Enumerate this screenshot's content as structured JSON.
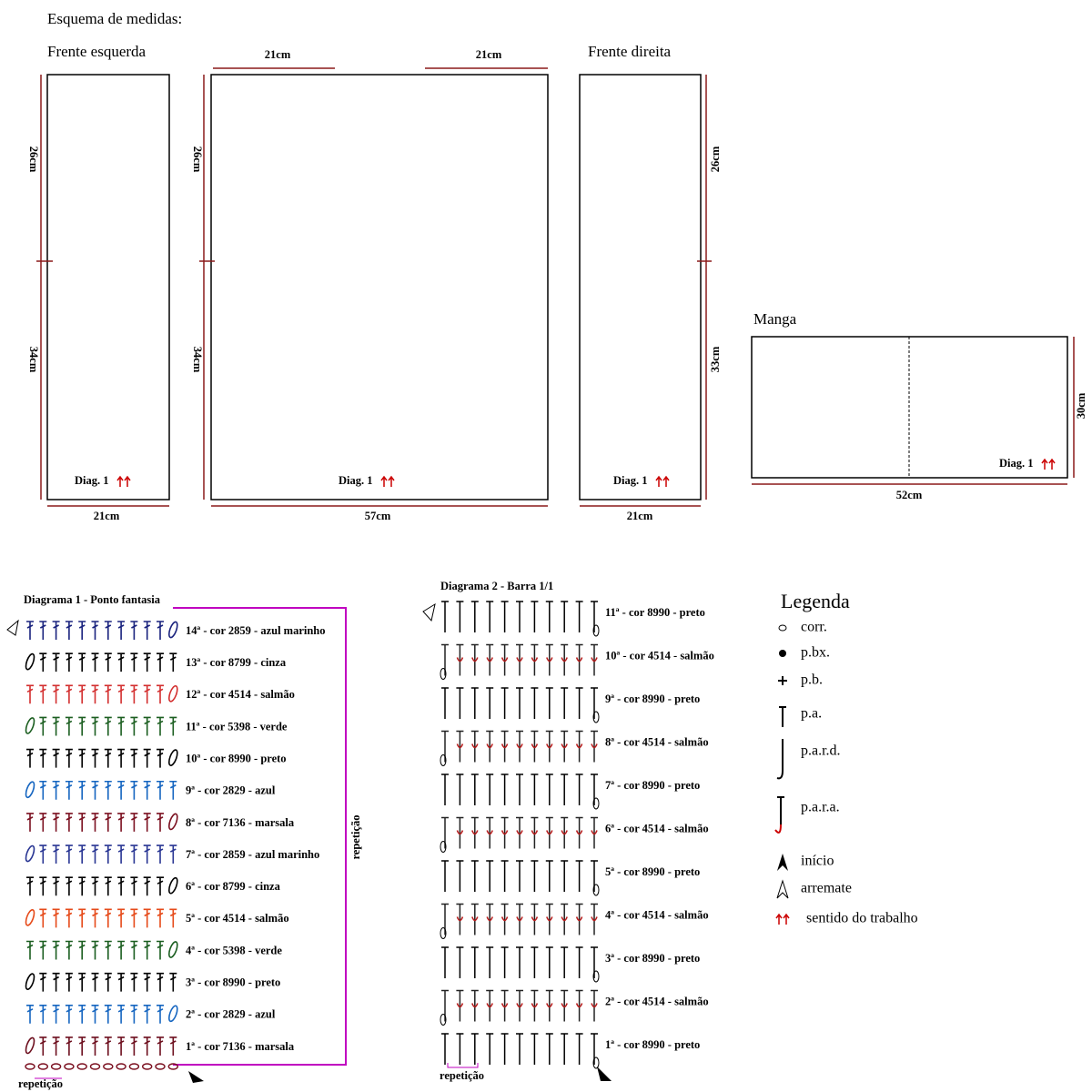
{
  "title": "Esquema de medidas:",
  "frente_esquerda": {
    "name": "Frente esquerda",
    "side": [
      "26cm",
      "34cm"
    ],
    "bottom": "21cm",
    "diag": "Diag. 1"
  },
  "costas": {
    "top": [
      "21cm",
      "21cm"
    ],
    "side": [
      "26cm",
      "34cm"
    ],
    "bottom": "57cm",
    "diag": "Diag. 1"
  },
  "frente_direita": {
    "name": "Frente direita",
    "side": [
      "26cm",
      "33cm"
    ],
    "bottom": "21cm",
    "diag": "Diag. 1"
  },
  "manga": {
    "name": "Manga",
    "side": "30cm",
    "bottom": "52cm",
    "diag": "Diag. 1"
  },
  "diagrama1": {
    "title": "Diagrama 1 - Ponto fantasia",
    "repeat_side": "repetição",
    "repeat_bottom": "repetição",
    "rows": [
      {
        "label": "14ª - cor 2859 - azul marinho",
        "color": "#1a237e"
      },
      {
        "label": "13ª - cor 8799 - cinza",
        "color": "#000000"
      },
      {
        "label": "12ª - cor 4514 - salmão",
        "color": "#d32f2f"
      },
      {
        "label": "11ª - cor 5398 - verde",
        "color": "#1b5e20"
      },
      {
        "label": "10ª - cor 8990 - preto",
        "color": "#000000"
      },
      {
        "label": "9ª - cor 2829 - azul",
        "color": "#1565c0"
      },
      {
        "label": "8ª - cor 7136 - marsala",
        "color": "#7b1020"
      },
      {
        "label": "7ª - cor 2859 - azul marinho",
        "color": "#283593"
      },
      {
        "label": "6ª - cor 8799 - cinza",
        "color": "#000000"
      },
      {
        "label": "5ª - cor 4514 - salmão",
        "color": "#e64a19"
      },
      {
        "label": "4ª - cor 5398 - verde",
        "color": "#1b5e20"
      },
      {
        "label": "3ª - cor 8990 - preto",
        "color": "#000000"
      },
      {
        "label": "2ª - cor 2829 - azul",
        "color": "#1565c0"
      },
      {
        "label": "1ª - cor 7136 - marsala",
        "color": "#6d0f1e"
      }
    ]
  },
  "diagrama2": {
    "title": "Diagrama 2 - Barra 1/1",
    "repeat_bottom": "repetição",
    "rows": [
      {
        "label": "11ª - cor 8990 - preto",
        "color": "#000000"
      },
      {
        "label": "10ª - cor 4514 - salmão",
        "color": "#b71c1c"
      },
      {
        "label": "9ª - cor 8990 - preto",
        "color": "#000000"
      },
      {
        "label": "8ª - cor 4514 - salmão",
        "color": "#b71c1c"
      },
      {
        "label": "7ª - cor 8990 - preto",
        "color": "#000000"
      },
      {
        "label": "6ª - cor 4514 - salmão",
        "color": "#b71c1c"
      },
      {
        "label": "5ª - cor 8990 - preto",
        "color": "#000000"
      },
      {
        "label": "4ª - cor 4514 - salmão",
        "color": "#b71c1c"
      },
      {
        "label": "3ª - cor 8990 - preto",
        "color": "#000000"
      },
      {
        "label": "2ª - cor 4514 - salmão",
        "color": "#b71c1c"
      },
      {
        "label": "1ª - cor 8990 - preto",
        "color": "#000000"
      }
    ]
  },
  "legenda": {
    "title": "Legenda",
    "items": [
      "corr.",
      "p.bx.",
      "p.b.",
      "p.a.",
      "p.a.r.d.",
      "p.a.r.a.",
      "início",
      "arremate",
      "sentido do trabalho"
    ]
  }
}
